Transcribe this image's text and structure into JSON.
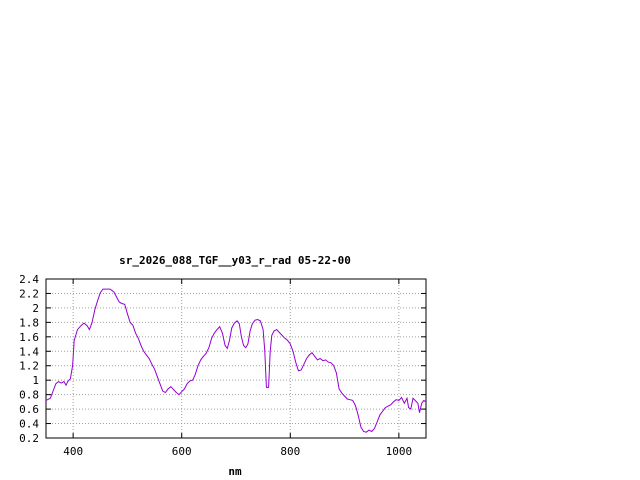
{
  "chart_data": {
    "type": "line",
    "title": "sr_2026_088_TGF__y03_r_rad 05-22-00",
    "xlabel": "nm",
    "ylabel": "",
    "xlim": [
      350,
      1050
    ],
    "ylim": [
      0.2,
      2.4
    ],
    "grid": true,
    "x_ticks": [
      400,
      600,
      800,
      1000
    ],
    "x_tick_labels": [
      "400",
      "600",
      "800",
      "1000"
    ],
    "y_ticks": [
      0.2,
      0.4,
      0.6,
      0.8,
      1.0,
      1.2,
      1.4,
      1.6,
      1.8,
      2.0,
      2.2,
      2.4
    ],
    "y_tick_labels": [
      "0.2",
      "0.4",
      "0.6",
      "0.8",
      "1",
      "1.2",
      "1.4",
      "1.6",
      "1.8",
      "2",
      "2.2",
      "2.4"
    ],
    "series": [
      {
        "name": "",
        "color": "#9400d3",
        "points": [
          [
            350,
            0.72
          ],
          [
            358,
            0.75
          ],
          [
            363,
            0.85
          ],
          [
            368,
            0.95
          ],
          [
            373,
            0.98
          ],
          [
            378,
            0.96
          ],
          [
            383,
            0.98
          ],
          [
            387,
            0.93
          ],
          [
            390,
            0.98
          ],
          [
            395,
            1.02
          ],
          [
            399,
            1.2
          ],
          [
            402,
            1.55
          ],
          [
            408,
            1.7
          ],
          [
            415,
            1.76
          ],
          [
            420,
            1.79
          ],
          [
            426,
            1.75
          ],
          [
            430,
            1.7
          ],
          [
            435,
            1.8
          ],
          [
            440,
            1.98
          ],
          [
            445,
            2.1
          ],
          [
            450,
            2.21
          ],
          [
            455,
            2.26
          ],
          [
            460,
            2.26
          ],
          [
            468,
            2.26
          ],
          [
            475,
            2.22
          ],
          [
            480,
            2.15
          ],
          [
            485,
            2.08
          ],
          [
            490,
            2.06
          ],
          [
            495,
            2.05
          ],
          [
            500,
            1.92
          ],
          [
            505,
            1.8
          ],
          [
            510,
            1.76
          ],
          [
            515,
            1.65
          ],
          [
            520,
            1.58
          ],
          [
            525,
            1.48
          ],
          [
            530,
            1.4
          ],
          [
            535,
            1.35
          ],
          [
            540,
            1.3
          ],
          [
            545,
            1.22
          ],
          [
            550,
            1.15
          ],
          [
            555,
            1.05
          ],
          [
            560,
            0.95
          ],
          [
            565,
            0.85
          ],
          [
            570,
            0.83
          ],
          [
            575,
            0.88
          ],
          [
            580,
            0.91
          ],
          [
            585,
            0.87
          ],
          [
            590,
            0.83
          ],
          [
            595,
            0.8
          ],
          [
            600,
            0.84
          ],
          [
            605,
            0.88
          ],
          [
            610,
            0.95
          ],
          [
            615,
            0.99
          ],
          [
            620,
            1.0
          ],
          [
            625,
            1.08
          ],
          [
            630,
            1.2
          ],
          [
            635,
            1.28
          ],
          [
            640,
            1.33
          ],
          [
            645,
            1.37
          ],
          [
            650,
            1.45
          ],
          [
            655,
            1.58
          ],
          [
            660,
            1.65
          ],
          [
            665,
            1.7
          ],
          [
            670,
            1.74
          ],
          [
            675,
            1.65
          ],
          [
            680,
            1.48
          ],
          [
            684,
            1.44
          ],
          [
            688,
            1.55
          ],
          [
            692,
            1.72
          ],
          [
            697,
            1.79
          ],
          [
            702,
            1.82
          ],
          [
            706,
            1.78
          ],
          [
            710,
            1.6
          ],
          [
            714,
            1.48
          ],
          [
            718,
            1.45
          ],
          [
            722,
            1.5
          ],
          [
            726,
            1.68
          ],
          [
            730,
            1.78
          ],
          [
            735,
            1.83
          ],
          [
            740,
            1.84
          ],
          [
            745,
            1.82
          ],
          [
            750,
            1.7
          ],
          [
            753,
            1.4
          ],
          [
            756,
            0.9
          ],
          [
            760,
            0.9
          ],
          [
            763,
            1.4
          ],
          [
            766,
            1.62
          ],
          [
            770,
            1.68
          ],
          [
            775,
            1.7
          ],
          [
            780,
            1.66
          ],
          [
            785,
            1.62
          ],
          [
            790,
            1.58
          ],
          [
            795,
            1.55
          ],
          [
            800,
            1.5
          ],
          [
            805,
            1.4
          ],
          [
            810,
            1.25
          ],
          [
            815,
            1.13
          ],
          [
            820,
            1.14
          ],
          [
            825,
            1.22
          ],
          [
            830,
            1.3
          ],
          [
            835,
            1.35
          ],
          [
            840,
            1.38
          ],
          [
            845,
            1.33
          ],
          [
            850,
            1.28
          ],
          [
            855,
            1.3
          ],
          [
            860,
            1.27
          ],
          [
            865,
            1.28
          ],
          [
            870,
            1.25
          ],
          [
            875,
            1.24
          ],
          [
            880,
            1.2
          ],
          [
            885,
            1.1
          ],
          [
            890,
            0.88
          ],
          [
            895,
            0.82
          ],
          [
            900,
            0.78
          ],
          [
            905,
            0.74
          ],
          [
            910,
            0.73
          ],
          [
            915,
            0.72
          ],
          [
            920,
            0.65
          ],
          [
            925,
            0.52
          ],
          [
            930,
            0.35
          ],
          [
            935,
            0.29
          ],
          [
            940,
            0.28
          ],
          [
            945,
            0.31
          ],
          [
            950,
            0.29
          ],
          [
            955,
            0.33
          ],
          [
            960,
            0.42
          ],
          [
            965,
            0.52
          ],
          [
            970,
            0.57
          ],
          [
            975,
            0.62
          ],
          [
            980,
            0.64
          ],
          [
            985,
            0.66
          ],
          [
            990,
            0.7
          ],
          [
            995,
            0.73
          ],
          [
            1000,
            0.72
          ],
          [
            1005,
            0.76
          ],
          [
            1010,
            0.68
          ],
          [
            1015,
            0.75
          ],
          [
            1018,
            0.62
          ],
          [
            1022,
            0.6
          ],
          [
            1026,
            0.75
          ],
          [
            1030,
            0.72
          ],
          [
            1035,
            0.68
          ],
          [
            1038,
            0.55
          ],
          [
            1042,
            0.68
          ],
          [
            1046,
            0.72
          ],
          [
            1050,
            0.7
          ]
        ]
      }
    ]
  }
}
